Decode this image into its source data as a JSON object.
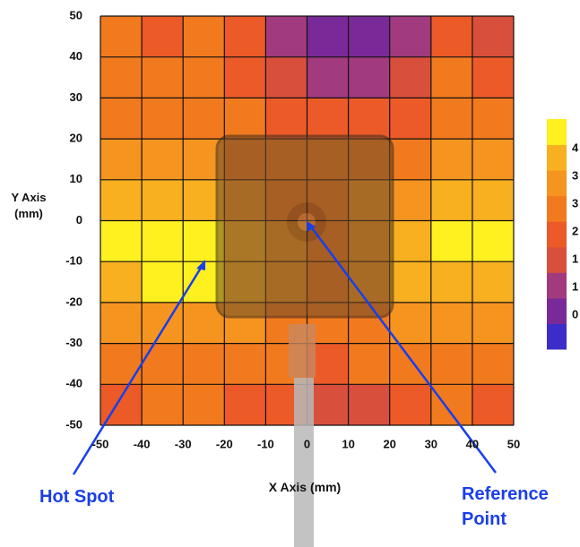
{
  "chart_data": {
    "type": "heatmap",
    "x_label": "X Axis (mm)",
    "y_label": "Y Axis (mm)",
    "xlim": [
      -50,
      50
    ],
    "ylim": [
      -50,
      50
    ],
    "xticks": [
      -50,
      -40,
      -30,
      -20,
      -10,
      0,
      10,
      20,
      30,
      40,
      50
    ],
    "yticks": [
      -50,
      -40,
      -30,
      -20,
      -10,
      0,
      10,
      20,
      30,
      40,
      50
    ],
    "grid": true,
    "zlim": [
      0,
      4.5
    ],
    "z": [
      [
        2.5,
        2.3,
        2.5,
        2.3,
        1.3,
        0.8,
        0.8,
        1.3,
        2.3,
        1.8
      ],
      [
        2.5,
        2.5,
        2.5,
        2.3,
        1.8,
        1.3,
        1.3,
        1.8,
        2.5,
        2.3
      ],
      [
        2.8,
        2.8,
        2.8,
        2.5,
        2.3,
        2.0,
        2.0,
        2.3,
        2.8,
        2.8
      ],
      [
        3.3,
        3.3,
        3.0,
        2.8,
        2.5,
        2.5,
        2.5,
        2.8,
        3.0,
        3.3
      ],
      [
        3.8,
        3.8,
        3.8,
        3.3,
        2.8,
        2.8,
        3.0,
        3.3,
        3.8,
        3.8
      ],
      [
        4.3,
        4.5,
        4.5,
        3.8,
        3.0,
        2.8,
        3.3,
        3.8,
        4.3,
        4.3
      ],
      [
        3.8,
        4.3,
        4.3,
        3.8,
        3.0,
        2.8,
        3.0,
        3.5,
        3.8,
        3.8
      ],
      [
        3.0,
        3.3,
        3.3,
        3.0,
        2.8,
        2.5,
        2.8,
        3.0,
        3.3,
        3.0
      ],
      [
        2.5,
        2.8,
        2.8,
        2.5,
        2.5,
        2.3,
        2.5,
        2.8,
        2.8,
        2.5
      ],
      [
        2.3,
        2.5,
        2.5,
        2.3,
        2.0,
        1.8,
        1.8,
        2.3,
        2.5,
        2.3
      ]
    ],
    "colorbar": {
      "colors": [
        "#3b2ec8",
        "#7a2a98",
        "#a23a80",
        "#d8503c",
        "#ec5a28",
        "#f27a1e",
        "#f69420",
        "#f8b020",
        "#fff020"
      ],
      "labels": [
        "4",
        "3",
        "3",
        "2",
        "1",
        "1",
        "0"
      ]
    },
    "annotations": [
      {
        "text": "Hot Spot"
      },
      {
        "text": "Reference Point"
      }
    ]
  }
}
